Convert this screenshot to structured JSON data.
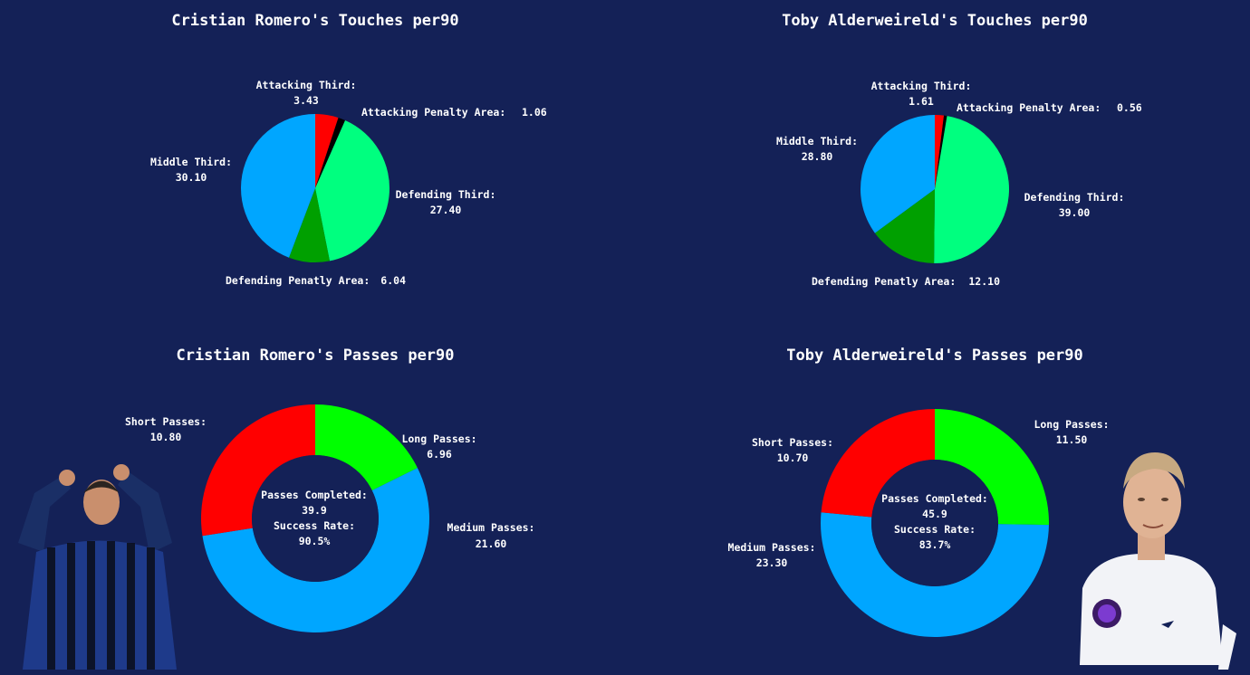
{
  "colors": {
    "background": "#142157",
    "red": "#ff0000",
    "black": "#000000",
    "green_bright": "#00ff7f",
    "green_dark": "#00a000",
    "blue": "#00a6ff",
    "lime": "#00ff00"
  },
  "chart_data": [
    {
      "type": "pie",
      "title": "Cristian Romero's Touches per90",
      "slices": [
        {
          "name": "Attacking Third:",
          "value": 3.43,
          "label": "3.43",
          "color": "#ff0000"
        },
        {
          "name": "Attacking Penalty Area:",
          "value": 1.06,
          "label": "1.06",
          "color": "#000000"
        },
        {
          "name": "Defending Third:",
          "value": 27.4,
          "label": "27.40",
          "color": "#00ff7f"
        },
        {
          "name": "Defending Penatly Area:",
          "value": 6.04,
          "label": "6.04",
          "color": "#00a000"
        },
        {
          "name": "Middle Third:",
          "value": 30.1,
          "label": "30.10",
          "color": "#00a6ff"
        }
      ]
    },
    {
      "type": "pie",
      "title": "Toby Alderweireld's Touches per90",
      "slices": [
        {
          "name": "Attacking Third:",
          "value": 1.61,
          "label": "1.61",
          "color": "#ff0000"
        },
        {
          "name": "Attacking Penalty Area:",
          "value": 0.56,
          "label": "0.56",
          "color": "#000000"
        },
        {
          "name": "Defending Third:",
          "value": 39.0,
          "label": "39.00",
          "color": "#00ff7f"
        },
        {
          "name": "Defending Penatly Area:",
          "value": 12.1,
          "label": "12.10",
          "color": "#00a000"
        },
        {
          "name": "Middle Third:",
          "value": 28.8,
          "label": "28.80",
          "color": "#00a6ff"
        }
      ]
    },
    {
      "type": "pie",
      "title": "Cristian Romero's Passes per90",
      "donut": true,
      "slices": [
        {
          "name": "Long Passes:",
          "value": 6.96,
          "label": "6.96",
          "color": "#00ff00"
        },
        {
          "name": "Medium Passes:",
          "value": 21.6,
          "label": "21.60",
          "color": "#00a6ff"
        },
        {
          "name": "Short Passes:",
          "value": 10.8,
          "label": "10.80",
          "color": "#ff0000"
        }
      ],
      "center": {
        "line1": "Passes Completed:",
        "line2": "39.9",
        "line3": "Success Rate:",
        "line4": "90.5%"
      }
    },
    {
      "type": "pie",
      "title": "Toby Alderweireld's Passes per90",
      "donut": true,
      "slices": [
        {
          "name": "Long Passes:",
          "value": 11.5,
          "label": "11.50",
          "color": "#00ff00"
        },
        {
          "name": "Medium Passes:",
          "value": 23.3,
          "label": "23.30",
          "color": "#00a6ff"
        },
        {
          "name": "Short Passes:",
          "value": 10.7,
          "label": "10.70",
          "color": "#ff0000"
        }
      ],
      "center": {
        "line1": "Passes Completed:",
        "line2": "45.9",
        "line3": "Success Rate:",
        "line4": "83.7%"
      }
    }
  ]
}
